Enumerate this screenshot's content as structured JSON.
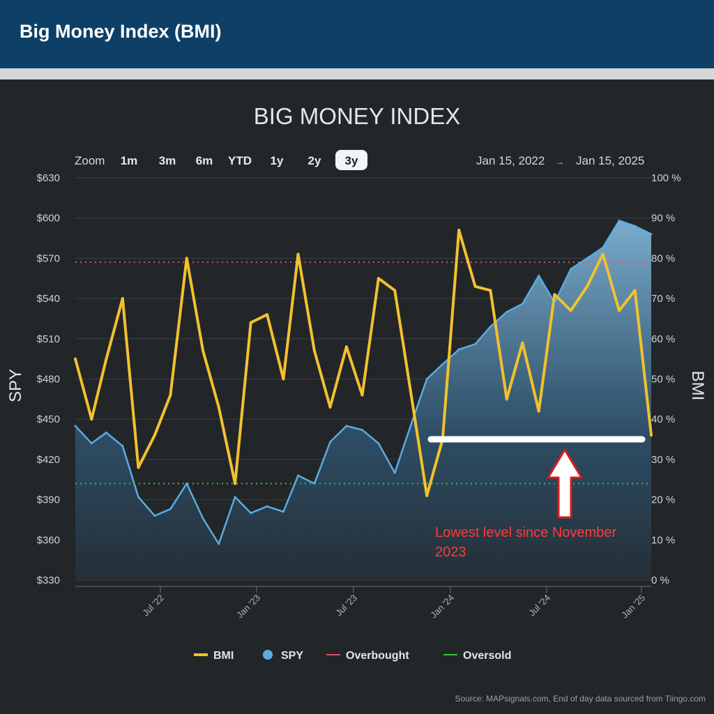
{
  "header": {
    "title": "Big Money Index (BMI)"
  },
  "chart_data": {
    "type": "line",
    "title": "BIG MONEY INDEX",
    "zoom": {
      "label": "Zoom",
      "buttons": [
        "1m",
        "3m",
        "6m",
        "YTD",
        "1y",
        "2y",
        "3y"
      ],
      "selected": "3y"
    },
    "range": {
      "from": "Jan 15, 2022",
      "arrow": "→",
      "to": "Jan 15, 2025"
    },
    "x_ticks": [
      "Jul '22",
      "Jan '23",
      "Jul '23",
      "Jan '24",
      "Jul '24",
      "Jan '25"
    ],
    "y_left": {
      "label": "SPY",
      "ticks": [
        "$630",
        "$600",
        "$570",
        "$540",
        "$510",
        "$480",
        "$450",
        "$420",
        "$390",
        "$360",
        "$330"
      ],
      "ylim": [
        330,
        630
      ]
    },
    "y_right": {
      "label": "BMI",
      "ticks": [
        "100 %",
        "90 %",
        "80 %",
        "70 %",
        "60 %",
        "50 %",
        "40 %",
        "30 %",
        "20 %",
        "10 %",
        "0 %"
      ],
      "ylim": [
        0,
        100
      ]
    },
    "x": [
      "2022-01-15",
      "2022-02-15",
      "2022-03-15",
      "2022-04-15",
      "2022-05-15",
      "2022-06-15",
      "2022-07-15",
      "2022-08-15",
      "2022-09-15",
      "2022-10-15",
      "2022-11-15",
      "2022-12-15",
      "2023-01-15",
      "2023-02-15",
      "2023-03-15",
      "2023-04-15",
      "2023-05-15",
      "2023-06-15",
      "2023-07-15",
      "2023-08-15",
      "2023-09-15",
      "2023-10-15",
      "2023-11-15",
      "2023-12-15",
      "2024-01-15",
      "2024-02-15",
      "2024-03-15",
      "2024-04-15",
      "2024-05-15",
      "2024-06-15",
      "2024-07-15",
      "2024-08-15",
      "2024-09-15",
      "2024-10-15",
      "2024-11-15",
      "2024-12-15",
      "2025-01-15"
    ],
    "series": [
      {
        "name": "BMI",
        "axis": "right",
        "color": "#f2c12e",
        "values": [
          55,
          40,
          55,
          70,
          28,
          36,
          46,
          80,
          57,
          43,
          24,
          64,
          66,
          50,
          81,
          57,
          43,
          58,
          46,
          75,
          72,
          47,
          21,
          35,
          87,
          73,
          72,
          45,
          59,
          42,
          71,
          67,
          73,
          81,
          67,
          72,
          36
        ]
      },
      {
        "name": "SPY",
        "axis": "left",
        "color": "#5aace0",
        "values": [
          445,
          432,
          440,
          430,
          392,
          378,
          383,
          402,
          376,
          357,
          392,
          380,
          385,
          381,
          408,
          402,
          433,
          445,
          442,
          432,
          410,
          445,
          480,
          491,
          502,
          506,
          519,
          530,
          536,
          557,
          537,
          562,
          570,
          578,
          598,
          594,
          588
        ]
      },
      {
        "name": "Overbought",
        "color": "#e2506a",
        "level": 79
      },
      {
        "name": "Oversold",
        "color": "#35c23a",
        "level": 24
      }
    ],
    "support_line_level": 35,
    "annotation": {
      "line1": "Lowest level since November",
      "line2": "2023"
    },
    "legend": [
      "BMI",
      "SPY",
      "Overbought",
      "Oversold"
    ],
    "legend_placement": "bottom",
    "grid": true,
    "source": "Source: MAPsignals.com, End of day data sourced from Tiingo.com"
  }
}
